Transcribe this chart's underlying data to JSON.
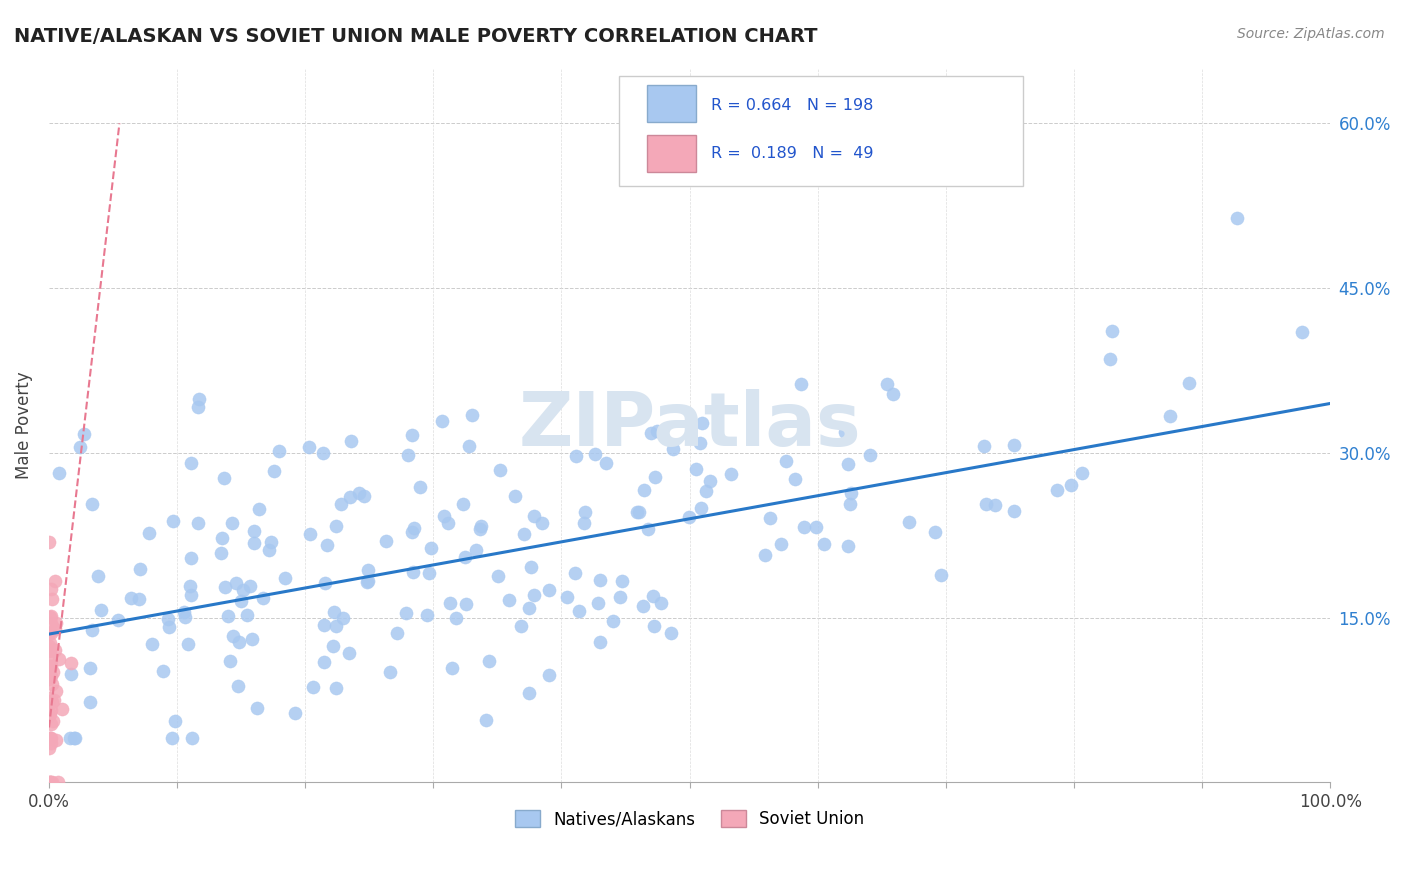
{
  "title": "NATIVE/ALASKAN VS SOVIET UNION MALE POVERTY CORRELATION CHART",
  "source_text": "Source: ZipAtlas.com",
  "ylabel": "Male Poverty",
  "xlim": [
    0,
    1.0
  ],
  "ylim": [
    0,
    0.65
  ],
  "ytick_positions": [
    0.15,
    0.3,
    0.45,
    0.6
  ],
  "ytick_labels": [
    "15.0%",
    "30.0%",
    "45.0%",
    "60.0%"
  ],
  "blue_R": 0.664,
  "blue_N": 198,
  "pink_R": 0.189,
  "pink_N": 49,
  "blue_color": "#a8c8f0",
  "pink_color": "#f4a8b8",
  "blue_line_color": "#2878c8",
  "pink_line_color": "#e87890",
  "title_color": "#222222",
  "legend_R_color": "#2255cc",
  "watermark_color": "#d8e4f0",
  "background_color": "#ffffff",
  "blue_scatter_seed": 42,
  "pink_scatter_seed": 7,
  "blue_trend_y_start": 0.135,
  "blue_trend_y_end": 0.345,
  "pink_trend_x_end": 0.055,
  "pink_trend_y_start": 0.05,
  "pink_trend_y_end": 0.6
}
